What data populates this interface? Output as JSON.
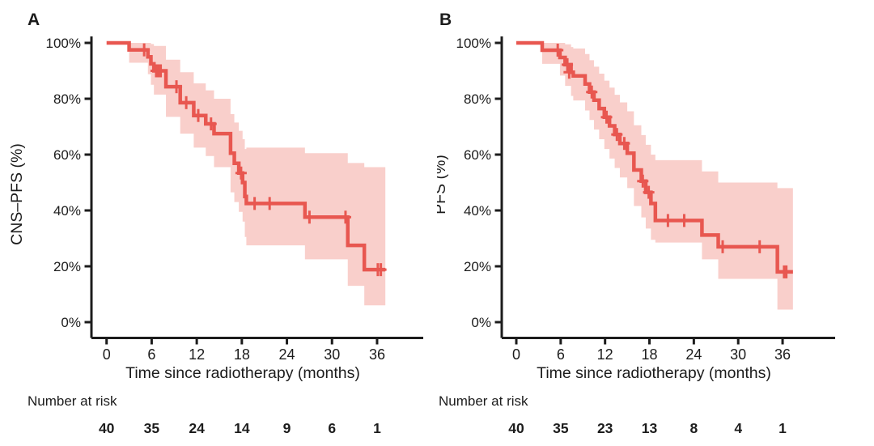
{
  "figure": {
    "background": "#ffffff",
    "text_color": "#1c1c1c",
    "axis_color": "#1c1c1c"
  },
  "chart_data": [
    {
      "type": "line",
      "subtype": "kaplan_meier_step_with_confidence_band",
      "panel_label": "A",
      "ylabel": "CNS–PFS (%)",
      "xlabel": "Time since radiotherapy (months)",
      "xlim": [
        0,
        36
      ],
      "ylim": [
        0,
        100
      ],
      "grid": false,
      "legend": null,
      "xticks": [
        0,
        6,
        12,
        18,
        24,
        30,
        36
      ],
      "ytick_labels": [
        "0%",
        "20%",
        "40%",
        "60%",
        "80%",
        "100%"
      ],
      "ytick_values": [
        0,
        20,
        40,
        60,
        80,
        100
      ],
      "line_color": "#e85750",
      "band_color": "#f9cfcb",
      "end_time": 37.1,
      "steps": [
        {
          "t": 0.0,
          "s": 100.0,
          "lo": 100.0,
          "hi": 100.0
        },
        {
          "t": 3.0,
          "s": 97.5,
          "lo": 92.9,
          "hi": 100.0
        },
        {
          "t": 5.5,
          "s": 95.0,
          "lo": 88.8,
          "hi": 100.0
        },
        {
          "t": 5.9,
          "s": 92.5,
          "lo": 85.0,
          "hi": 99.6
        },
        {
          "t": 6.3,
          "s": 90.0,
          "lo": 81.5,
          "hi": 98.9
        },
        {
          "t": 7.9,
          "s": 84.3,
          "lo": 73.5,
          "hi": 94.0
        },
        {
          "t": 9.8,
          "s": 78.6,
          "lo": 67.5,
          "hi": 89.5
        },
        {
          "t": 11.6,
          "s": 74.0,
          "lo": 62.5,
          "hi": 85.5
        },
        {
          "t": 13.2,
          "s": 71.0,
          "lo": 59.5,
          "hi": 83.0
        },
        {
          "t": 14.3,
          "s": 67.5,
          "lo": 55.5,
          "hi": 80.0
        },
        {
          "t": 16.5,
          "s": 60.5,
          "lo": 46.5,
          "hi": 74.5
        },
        {
          "t": 17.0,
          "s": 56.9,
          "lo": 43.0,
          "hi": 71.5
        },
        {
          "t": 17.6,
          "s": 53.4,
          "lo": 39.5,
          "hi": 68.5
        },
        {
          "t": 18.1,
          "s": 50.0,
          "lo": 36.0,
          "hi": 65.5
        },
        {
          "t": 18.4,
          "s": 45.0,
          "lo": 30.5,
          "hi": 62.0
        },
        {
          "t": 18.6,
          "s": 42.5,
          "lo": 27.5,
          "hi": 62.5
        },
        {
          "t": 26.4,
          "s": 37.6,
          "lo": 22.5,
          "hi": 60.5
        },
        {
          "t": 32.1,
          "s": 27.5,
          "lo": 13.0,
          "hi": 57.0
        },
        {
          "t": 34.3,
          "s": 18.8,
          "lo": 6.0,
          "hi": 55.5
        }
      ],
      "censors": [
        {
          "t": 5.0,
          "s": 97.5
        },
        {
          "t": 6.6,
          "s": 90.0
        },
        {
          "t": 6.9,
          "s": 90.0
        },
        {
          "t": 7.2,
          "s": 90.0
        },
        {
          "t": 9.3,
          "s": 84.3
        },
        {
          "t": 10.6,
          "s": 78.6
        },
        {
          "t": 12.2,
          "s": 74.0
        },
        {
          "t": 13.9,
          "s": 71.0
        },
        {
          "t": 17.9,
          "s": 53.4
        },
        {
          "t": 19.7,
          "s": 42.5
        },
        {
          "t": 21.7,
          "s": 42.5
        },
        {
          "t": 27.0,
          "s": 37.6
        },
        {
          "t": 31.8,
          "s": 37.6
        },
        {
          "t": 36.1,
          "s": 18.8
        },
        {
          "t": 36.5,
          "s": 18.8
        }
      ],
      "risk_table": {
        "label": "Number at risk",
        "times": [
          0,
          6,
          12,
          18,
          24,
          30,
          36
        ],
        "counts": [
          40,
          35,
          24,
          14,
          9,
          6,
          1
        ]
      }
    },
    {
      "type": "line",
      "subtype": "kaplan_meier_step_with_confidence_band",
      "panel_label": "B",
      "ylabel": "PFS (%)",
      "xlabel": "Time since radiotherapy (months)",
      "xlim": [
        0,
        36
      ],
      "ylim": [
        0,
        100
      ],
      "grid": false,
      "legend": null,
      "xticks": [
        0,
        6,
        12,
        18,
        24,
        30,
        36
      ],
      "ytick_labels": [
        "0%",
        "20%",
        "40%",
        "60%",
        "80%",
        "100%"
      ],
      "ytick_values": [
        0,
        20,
        40,
        60,
        80,
        100
      ],
      "line_color": "#e85750",
      "band_color": "#f9cfcb",
      "end_time": 37.4,
      "steps": [
        {
          "t": 0.0,
          "s": 100.0,
          "lo": 100.0,
          "hi": 100.0
        },
        {
          "t": 3.5,
          "s": 97.4,
          "lo": 92.5,
          "hi": 100.0
        },
        {
          "t": 5.9,
          "s": 94.8,
          "lo": 88.3,
          "hi": 100.0
        },
        {
          "t": 6.6,
          "s": 92.2,
          "lo": 84.6,
          "hi": 99.5
        },
        {
          "t": 7.4,
          "s": 89.5,
          "lo": 81.0,
          "hi": 98.5
        },
        {
          "t": 7.7,
          "s": 88.2,
          "lo": 79.4,
          "hi": 98.0
        },
        {
          "t": 9.3,
          "s": 85.3,
          "lo": 75.8,
          "hi": 96.0
        },
        {
          "t": 9.9,
          "s": 82.4,
          "lo": 72.4,
          "hi": 93.8
        },
        {
          "t": 10.5,
          "s": 79.5,
          "lo": 69.0,
          "hi": 91.5
        },
        {
          "t": 11.2,
          "s": 76.5,
          "lo": 65.5,
          "hi": 89.0
        },
        {
          "t": 11.9,
          "s": 73.4,
          "lo": 62.0,
          "hi": 86.5
        },
        {
          "t": 12.6,
          "s": 70.3,
          "lo": 58.6,
          "hi": 84.0
        },
        {
          "t": 13.3,
          "s": 67.2,
          "lo": 55.2,
          "hi": 81.4
        },
        {
          "t": 14.0,
          "s": 64.0,
          "lo": 51.8,
          "hi": 78.7
        },
        {
          "t": 15.0,
          "s": 60.5,
          "lo": 48.0,
          "hi": 75.5
        },
        {
          "t": 15.9,
          "s": 54.5,
          "lo": 41.6,
          "hi": 70.5
        },
        {
          "t": 16.9,
          "s": 50.5,
          "lo": 37.5,
          "hi": 67.0
        },
        {
          "t": 17.5,
          "s": 46.5,
          "lo": 33.5,
          "hi": 63.5
        },
        {
          "t": 18.2,
          "s": 42.5,
          "lo": 29.5,
          "hi": 60.0
        },
        {
          "t": 18.8,
          "s": 36.4,
          "lo": 28.5,
          "hi": 58.0
        },
        {
          "t": 25.1,
          "s": 31.2,
          "lo": 22.5,
          "hi": 54.0
        },
        {
          "t": 27.3,
          "s": 27.0,
          "lo": 15.5,
          "hi": 50.0
        },
        {
          "t": 35.3,
          "s": 18.0,
          "lo": 4.5,
          "hi": 48.0
        }
      ],
      "censors": [
        {
          "t": 5.6,
          "s": 97.4
        },
        {
          "t": 6.9,
          "s": 92.2
        },
        {
          "t": 7.15,
          "s": 89.5
        },
        {
          "t": 10.2,
          "s": 82.4
        },
        {
          "t": 12.2,
          "s": 73.4
        },
        {
          "t": 13.6,
          "s": 67.2
        },
        {
          "t": 14.6,
          "s": 64.0
        },
        {
          "t": 17.1,
          "s": 50.5
        },
        {
          "t": 17.9,
          "s": 46.5
        },
        {
          "t": 20.5,
          "s": 36.4
        },
        {
          "t": 22.7,
          "s": 36.4
        },
        {
          "t": 27.9,
          "s": 27.0
        },
        {
          "t": 32.9,
          "s": 27.0
        },
        {
          "t": 36.2,
          "s": 18.0
        },
        {
          "t": 36.5,
          "s": 18.0
        }
      ],
      "risk_table": {
        "label": "Number at risk",
        "times": [
          0,
          6,
          12,
          18,
          24,
          30,
          36
        ],
        "counts": [
          40,
          35,
          23,
          13,
          8,
          4,
          1
        ]
      }
    }
  ]
}
